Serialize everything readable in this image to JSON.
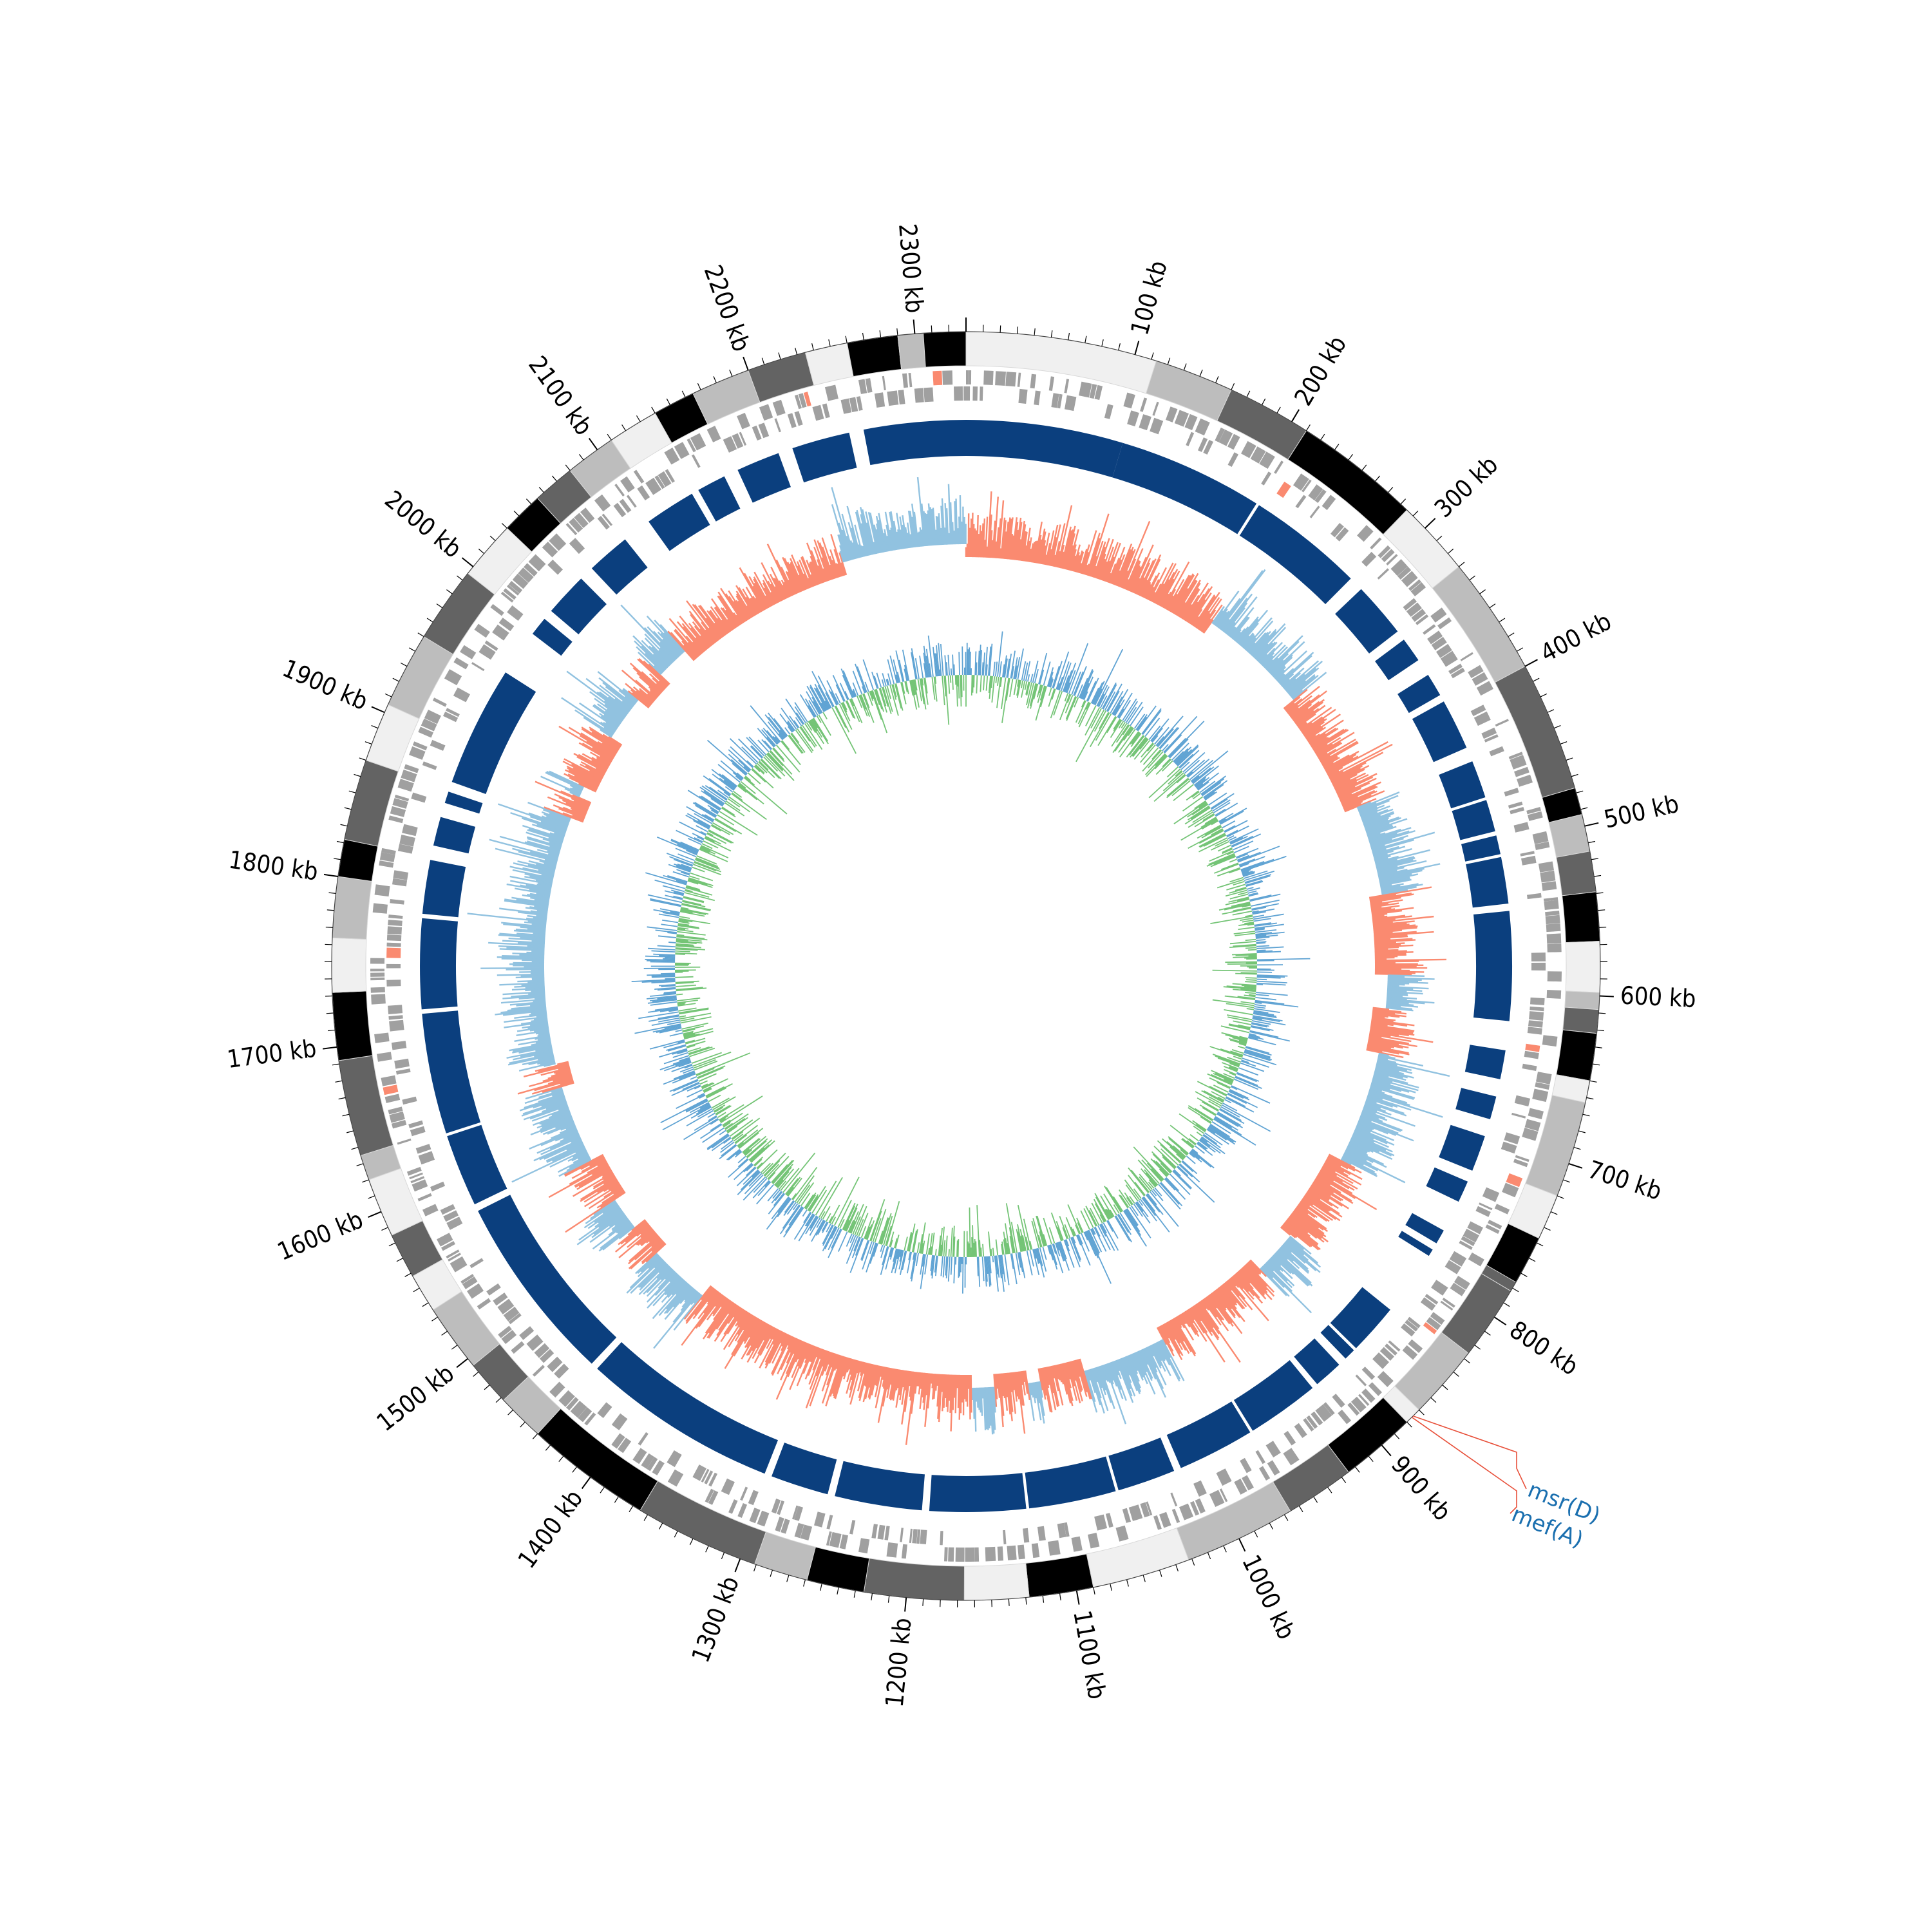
{
  "genome_map": {
    "genome_length_kb": 2330,
    "tick_labels": [
      "100 kb",
      "200 kb",
      "300 kb",
      "400 kb",
      "500 kb",
      "600 kb",
      "700 kb",
      "800 kb",
      "900 kb",
      "1000 kb",
      "1100 kb",
      "1200 kb",
      "1300 kb",
      "1400 kb",
      "1500 kb",
      "1600 kb",
      "1700 kb",
      "1800 kb",
      "1900 kb",
      "2000 kb",
      "2100 kb",
      "2200 kb",
      "2300 kb"
    ],
    "tick_positions_kb": [
      100,
      200,
      300,
      400,
      500,
      600,
      700,
      800,
      900,
      1000,
      1100,
      1200,
      1300,
      1400,
      1500,
      1600,
      1700,
      1800,
      1900,
      2000,
      2100,
      2200,
      2300
    ],
    "annotated_genes": [
      {
        "label": "msr(D)",
        "position_kb": 875,
        "color": "#1a6faf"
      },
      {
        "label": "mef(A)",
        "position_kb": 876,
        "color": "#1a6faf"
      }
    ],
    "colors": {
      "contig_shades": [
        "#f0f0f0",
        "#bdbdbd",
        "#636363",
        "#000000"
      ],
      "gene_bars": "#a0a0a0",
      "alignment_blocks": "#0b3f7e",
      "gc_positive": "#fa8a70",
      "gc_negative": "#91c2e0",
      "skew_positive": "#74c476",
      "skew_negative": "#5fa3d3",
      "callout_line": "#e8503a"
    }
  }
}
